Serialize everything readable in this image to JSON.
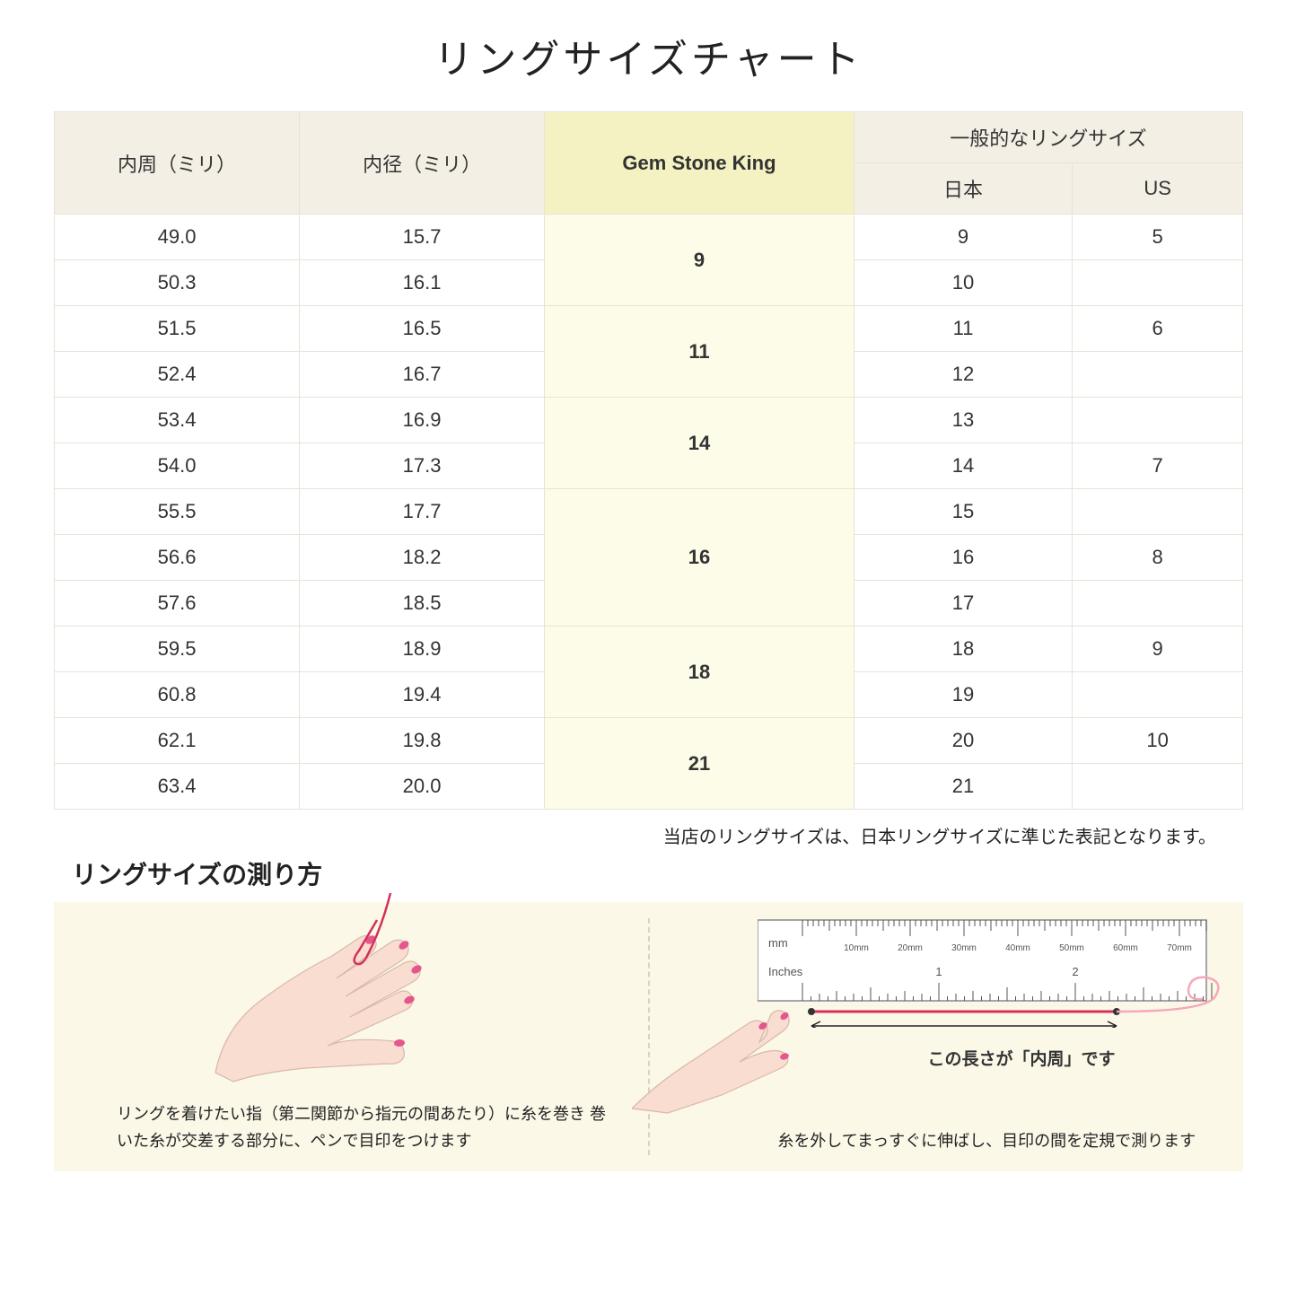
{
  "title": "リングサイズチャート",
  "headers": {
    "col1": "内周（ミリ）",
    "col2": "内径（ミリ）",
    "col3": "Gem Stone King",
    "col4_group": "一般的なリングサイズ",
    "col4a": "日本",
    "col4b": "US"
  },
  "groups": [
    {
      "gsk": "9",
      "rows": [
        {
          "c": "49.0",
          "d": "15.7",
          "jp": "9",
          "us": "5"
        },
        {
          "c": "50.3",
          "d": "16.1",
          "jp": "10",
          "us": ""
        }
      ]
    },
    {
      "gsk": "11",
      "rows": [
        {
          "c": "51.5",
          "d": "16.5",
          "jp": "11",
          "us": "6"
        },
        {
          "c": "52.4",
          "d": "16.7",
          "jp": "12",
          "us": ""
        }
      ]
    },
    {
      "gsk": "14",
      "rows": [
        {
          "c": "53.4",
          "d": "16.9",
          "jp": "13",
          "us": ""
        },
        {
          "c": "54.0",
          "d": "17.3",
          "jp": "14",
          "us": "7"
        }
      ]
    },
    {
      "gsk": "16",
      "rows": [
        {
          "c": "55.5",
          "d": "17.7",
          "jp": "15",
          "us": ""
        },
        {
          "c": "56.6",
          "d": "18.2",
          "jp": "16",
          "us": "8"
        },
        {
          "c": "57.6",
          "d": "18.5",
          "jp": "17",
          "us": ""
        }
      ]
    },
    {
      "gsk": "18",
      "rows": [
        {
          "c": "59.5",
          "d": "18.9",
          "jp": "18",
          "us": "9"
        },
        {
          "c": "60.8",
          "d": "19.4",
          "jp": "19",
          "us": ""
        }
      ]
    },
    {
      "gsk": "21",
      "rows": [
        {
          "c": "62.1",
          "d": "19.8",
          "jp": "20",
          "us": "10"
        },
        {
          "c": "63.4",
          "d": "20.0",
          "jp": "21",
          "us": ""
        }
      ]
    }
  ],
  "note": "当店のリングサイズは、日本リングサイズに準じた表記となります。",
  "howto_title": "リングサイズの測り方",
  "howto_left_caption": "リングを着けたい指（第二関節から指元の間あたり）に糸を巻き\n巻いた糸が交差する部分に、ペンで目印をつけます",
  "howto_right_caption": "糸を外してまっすぐに伸ばし、目印の間を定規で測ります",
  "ruler_label": "この長さが「内周」です",
  "ruler": {
    "mm_label": "mm",
    "inches_label": "Inches",
    "mm_ticks": [
      "10mm",
      "20mm",
      "30mm",
      "40mm",
      "50mm",
      "60mm",
      "70mm"
    ],
    "inch_ticks": [
      "1",
      "2"
    ]
  },
  "colors": {
    "header_bg": "#f4efe4",
    "highlight_header_bg": "#f4f2c2",
    "highlight_cell_bg": "#fdfce8",
    "border": "#e8e3d8",
    "howto_bg": "#fbf8e8",
    "skin": "#f8ddd0",
    "skin_shade": "#f0c8b8",
    "nail": "#e5568b",
    "thread": "#d4305a"
  }
}
